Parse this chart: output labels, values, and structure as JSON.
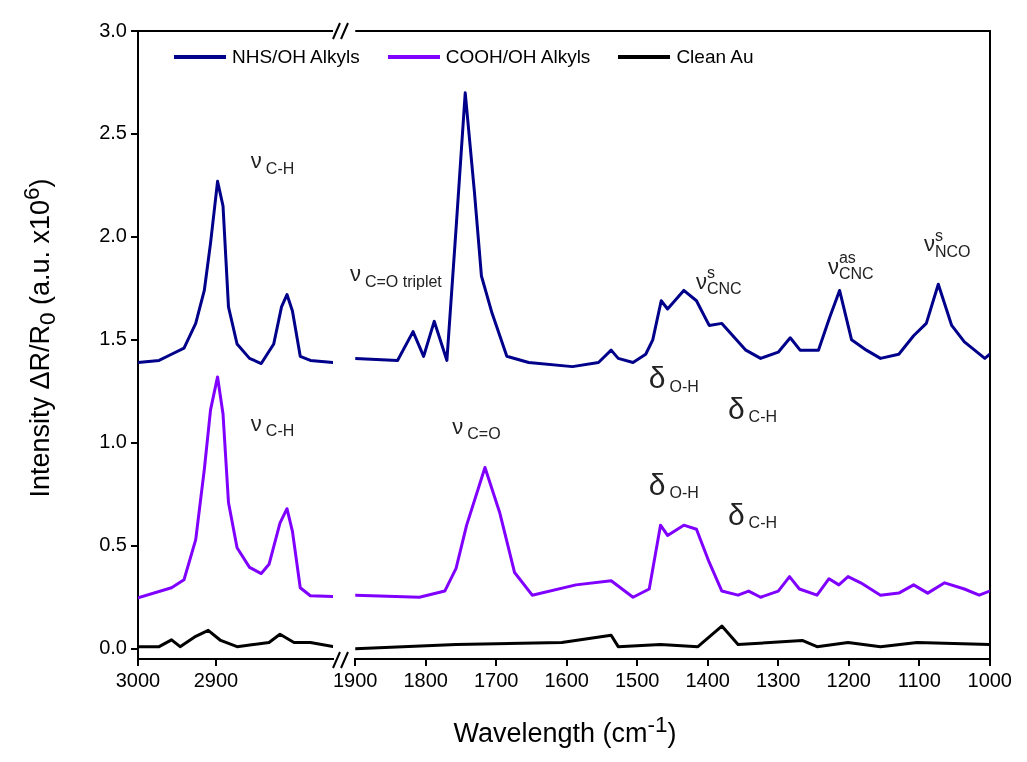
{
  "chart_data": [
    {
      "type": "line",
      "ylabel": "Intensity ΔR/R$_{0}$ (a.u. x10$^{6}$)",
      "xlim": [
        3000,
        2750
      ],
      "xticks": [
        3000,
        2900
      ],
      "ylim": [
        -0.05,
        3.0
      ],
      "yticks": [
        {
          "value": 0,
          "label": "0.0"
        },
        {
          "value": 0.5,
          "label": "0.5"
        },
        {
          "value": 1,
          "label": "1.0"
        },
        {
          "value": 1.5,
          "label": "1.5"
        },
        {
          "value": 2,
          "label": "2.0"
        },
        {
          "value": 2.5,
          "label": "2.5"
        },
        {
          "value": 3,
          "label": "3.0"
        }
      ],
      "grid": false,
      "legend": "top",
      "marker": "none",
      "line_style": "solid",
      "series": [
        {
          "name": "NHS/OH Alkyls",
          "color": "#00008b",
          "x": [
            3000,
            2973,
            2957,
            2941,
            2926,
            2915,
            2907,
            2898,
            2891,
            2884,
            2873,
            2857,
            2842,
            2826,
            2816,
            2809,
            2802,
            2792,
            2779,
            2750
          ],
          "values": [
            1.39,
            1.4,
            1.43,
            1.46,
            1.58,
            1.74,
            1.97,
            2.27,
            2.15,
            1.66,
            1.48,
            1.41,
            1.385,
            1.48,
            1.66,
            1.72,
            1.64,
            1.42,
            1.4,
            1.39
          ]
        },
        {
          "name": "COOH/OH Alkyls",
          "color": "#8000ff",
          "x": [
            3000,
            2957,
            2941,
            2926,
            2915,
            2907,
            2898,
            2891,
            2884,
            2873,
            2857,
            2842,
            2832,
            2818,
            2809,
            2802,
            2792,
            2779,
            2750
          ],
          "values": [
            0.247,
            0.296,
            0.335,
            0.53,
            0.87,
            1.16,
            1.32,
            1.14,
            0.71,
            0.49,
            0.395,
            0.365,
            0.41,
            0.61,
            0.68,
            0.57,
            0.296,
            0.257,
            0.253
          ]
        },
        {
          "name": "Clean Au",
          "color": "#000000",
          "x": [
            3000,
            2973,
            2957,
            2946,
            2926,
            2910,
            2894,
            2873,
            2852,
            2832,
            2818,
            2800,
            2779,
            2750
          ],
          "values": [
            0.01,
            0.01,
            0.043,
            0.01,
            0.06,
            0.089,
            0.04,
            0.01,
            0.02,
            0.03,
            0.07,
            0.03,
            0.03,
            0.01
          ]
        }
      ],
      "annotations": [
        "ν$_{C-H}$",
        "ν$_{C-H}$"
      ]
    },
    {
      "type": "line",
      "xlabel": "Wavelength (cm$^{-1}$)",
      "xlim": [
        1900,
        1000
      ],
      "xticks": [
        1900,
        1800,
        1700,
        1600,
        1500,
        1400,
        1300,
        1200,
        1100,
        1000
      ],
      "ylim": [
        -0.05,
        3.0
      ],
      "tick_labels": "x",
      "grid": false,
      "marker": "none",
      "line_style": "solid",
      "series": [
        {
          "color": "#00008b",
          "x": [
            1900,
            1840,
            1818,
            1803,
            1788,
            1770,
            1757,
            1744,
            1731,
            1721,
            1706,
            1685,
            1654,
            1592,
            1555,
            1537,
            1527,
            1506,
            1488,
            1478,
            1466,
            1457,
            1434,
            1416,
            1398,
            1380,
            1346,
            1325,
            1300,
            1283,
            1269,
            1243,
            1227,
            1213,
            1196,
            1175,
            1155,
            1129,
            1108,
            1090,
            1073,
            1054,
            1036,
            1007,
            1000
          ],
          "values": [
            1.41,
            1.4,
            1.54,
            1.42,
            1.59,
            1.4,
            2.04,
            2.7,
            2.22,
            1.81,
            1.63,
            1.42,
            1.39,
            1.37,
            1.39,
            1.45,
            1.41,
            1.39,
            1.43,
            1.5,
            1.69,
            1.65,
            1.74,
            1.69,
            1.57,
            1.58,
            1.45,
            1.41,
            1.44,
            1.51,
            1.45,
            1.45,
            1.61,
            1.74,
            1.5,
            1.45,
            1.41,
            1.43,
            1.52,
            1.58,
            1.77,
            1.57,
            1.49,
            1.41,
            1.43
          ]
        },
        {
          "color": "#8000ff",
          "x": [
            1900,
            1809,
            1773,
            1757,
            1742,
            1716,
            1695,
            1674,
            1649,
            1587,
            1537,
            1506,
            1483,
            1467,
            1457,
            1434,
            1416,
            1398,
            1380,
            1357,
            1342,
            1325,
            1300,
            1284,
            1270,
            1245,
            1228,
            1214,
            1201,
            1183,
            1155,
            1129,
            1108,
            1088,
            1064,
            1036,
            1015,
            1000
          ],
          "values": [
            0.26,
            0.25,
            0.28,
            0.39,
            0.6,
            0.88,
            0.66,
            0.37,
            0.26,
            0.31,
            0.33,
            0.25,
            0.29,
            0.6,
            0.55,
            0.6,
            0.58,
            0.42,
            0.28,
            0.26,
            0.28,
            0.25,
            0.28,
            0.35,
            0.29,
            0.26,
            0.34,
            0.31,
            0.35,
            0.32,
            0.26,
            0.27,
            0.31,
            0.27,
            0.32,
            0.29,
            0.26,
            0.28
          ]
        },
        {
          "color": "#000000",
          "x": [
            1900,
            1757,
            1607,
            1537,
            1527,
            1467,
            1414,
            1380,
            1357,
            1266,
            1245,
            1201,
            1155,
            1103,
            1000
          ],
          "values": [
            0.0,
            0.02,
            0.03,
            0.065,
            0.01,
            0.02,
            0.01,
            0.11,
            0.02,
            0.04,
            0.01,
            0.03,
            0.01,
            0.03,
            0.02
          ]
        }
      ],
      "annotations": [
        "ν$_{C=O triplet}$",
        "ν$_{C=O}$",
        "δ$_{O-H}$",
        "δ$_{C-H}$",
        "δ$_{O-H}$",
        "δ$_{C-H}$",
        "ν$^{s}$$_{CNC}$",
        "ν$^{as}$$_{CNC}$",
        "ν$^{s}$$_{NCO}$"
      ]
    }
  ]
}
